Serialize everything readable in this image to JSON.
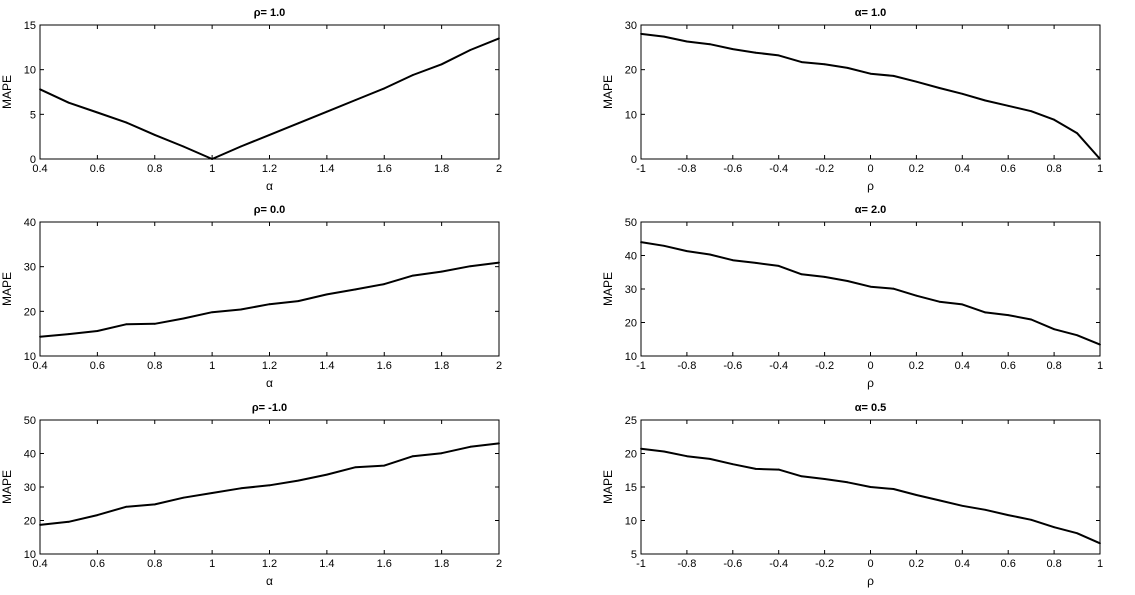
{
  "chart_data": [
    {
      "type": "line",
      "title": "ρ= 1.0",
      "xlabel": "α",
      "ylabel": "MAPE",
      "xlim": [
        0.4,
        2
      ],
      "ylim": [
        0,
        15
      ],
      "xticks": [
        "0.4",
        "0.6",
        "0.8",
        "1",
        "1.2",
        "1.4",
        "1.6",
        "1.8",
        "2"
      ],
      "yticks": [
        "0",
        "5",
        "10",
        "15"
      ],
      "grid": false,
      "x": [
        0.4,
        0.5,
        0.6,
        0.7,
        0.8,
        0.9,
        1.0,
        1.1,
        1.2,
        1.3,
        1.4,
        1.5,
        1.6,
        1.7,
        1.8,
        1.9,
        2.0
      ],
      "values": [
        7.8,
        6.3,
        5.2,
        4.1,
        2.7,
        1.4,
        0.0,
        1.4,
        2.7,
        4.0,
        5.3,
        6.6,
        7.9,
        9.4,
        10.6,
        12.2,
        13.5
      ]
    },
    {
      "type": "line",
      "title": "α= 1.0",
      "xlabel": "ρ",
      "ylabel": "MAPE",
      "xlim": [
        -1,
        1
      ],
      "ylim": [
        0,
        30
      ],
      "xticks": [
        "-1",
        "-0.8",
        "-0.6",
        "-0.4",
        "-0.2",
        "0",
        "0.2",
        "0.4",
        "0.6",
        "0.8",
        "1"
      ],
      "yticks": [
        "0",
        "10",
        "20",
        "30"
      ],
      "grid": false,
      "x": [
        -1.0,
        -0.9,
        -0.8,
        -0.7,
        -0.6,
        -0.5,
        -0.4,
        -0.3,
        -0.2,
        -0.1,
        0.0,
        0.1,
        0.2,
        0.3,
        0.4,
        0.5,
        0.6,
        0.7,
        0.8,
        0.9,
        1.0
      ],
      "values": [
        28.0,
        27.4,
        26.3,
        25.7,
        24.6,
        23.8,
        23.2,
        21.7,
        21.2,
        20.4,
        19.1,
        18.6,
        17.3,
        15.9,
        14.6,
        13.1,
        11.9,
        10.7,
        8.8,
        5.8,
        0.0
      ]
    },
    {
      "type": "line",
      "title": "ρ= 0.0",
      "xlabel": "α",
      "ylabel": "MAPE",
      "xlim": [
        0.4,
        2
      ],
      "ylim": [
        10,
        40
      ],
      "xticks": [
        "0.4",
        "0.6",
        "0.8",
        "1",
        "1.2",
        "1.4",
        "1.6",
        "1.8",
        "2"
      ],
      "yticks": [
        "10",
        "20",
        "30",
        "40"
      ],
      "grid": false,
      "x": [
        0.4,
        0.5,
        0.6,
        0.7,
        0.8,
        0.9,
        1.0,
        1.1,
        1.2,
        1.3,
        1.4,
        1.5,
        1.6,
        1.7,
        1.8,
        1.9,
        2.0
      ],
      "values": [
        14.3,
        14.9,
        15.6,
        17.1,
        17.2,
        18.4,
        19.8,
        20.4,
        21.6,
        22.3,
        23.8,
        24.9,
        26.1,
        28.0,
        28.9,
        30.1,
        30.9
      ]
    },
    {
      "type": "line",
      "title": "α= 2.0",
      "xlabel": "ρ",
      "ylabel": "MAPE",
      "xlim": [
        -1,
        1
      ],
      "ylim": [
        10,
        50
      ],
      "xticks": [
        "-1",
        "-0.8",
        "-0.6",
        "-0.4",
        "-0.2",
        "0",
        "0.2",
        "0.4",
        "0.6",
        "0.8",
        "1"
      ],
      "yticks": [
        "10",
        "20",
        "30",
        "40",
        "50"
      ],
      "grid": false,
      "x": [
        -1.0,
        -0.9,
        -0.8,
        -0.7,
        -0.6,
        -0.5,
        -0.4,
        -0.3,
        -0.2,
        -0.1,
        0.0,
        0.1,
        0.2,
        0.3,
        0.4,
        0.5,
        0.6,
        0.7,
        0.8,
        0.9,
        1.0
      ],
      "values": [
        44.0,
        42.9,
        41.3,
        40.3,
        38.6,
        37.8,
        36.9,
        34.4,
        33.6,
        32.4,
        30.7,
        30.1,
        28.0,
        26.2,
        25.4,
        23.0,
        22.2,
        20.9,
        18.0,
        16.2,
        13.4
      ]
    },
    {
      "type": "line",
      "title": "ρ= -1.0",
      "xlabel": "α",
      "ylabel": "MAPE",
      "xlim": [
        0.4,
        2
      ],
      "ylim": [
        10,
        50
      ],
      "xticks": [
        "0.4",
        "0.6",
        "0.8",
        "1",
        "1.2",
        "1.4",
        "1.6",
        "1.8",
        "2"
      ],
      "yticks": [
        "10",
        "20",
        "30",
        "40",
        "50"
      ],
      "grid": false,
      "x": [
        0.4,
        0.5,
        0.6,
        0.7,
        0.8,
        0.9,
        1.0,
        1.1,
        1.2,
        1.3,
        1.4,
        1.5,
        1.6,
        1.7,
        1.8,
        1.9,
        2.0
      ],
      "values": [
        18.7,
        19.6,
        21.6,
        24.1,
        24.8,
        26.8,
        28.2,
        29.6,
        30.5,
        31.9,
        33.7,
        35.9,
        36.4,
        39.2,
        40.1,
        42.0,
        43.0
      ]
    },
    {
      "type": "line",
      "title": "α= 0.5",
      "xlabel": "ρ",
      "ylabel": "MAPE",
      "xlim": [
        -1,
        1
      ],
      "ylim": [
        5,
        25
      ],
      "xticks": [
        "-1",
        "-0.8",
        "-0.6",
        "-0.4",
        "-0.2",
        "0",
        "0.2",
        "0.4",
        "0.6",
        "0.8",
        "1"
      ],
      "yticks": [
        "5",
        "10",
        "15",
        "20",
        "25"
      ],
      "grid": false,
      "x": [
        -1.0,
        -0.9,
        -0.8,
        -0.7,
        -0.6,
        -0.5,
        -0.4,
        -0.3,
        -0.2,
        -0.1,
        0.0,
        0.1,
        0.2,
        0.3,
        0.4,
        0.5,
        0.6,
        0.7,
        0.8,
        0.9,
        1.0
      ],
      "values": [
        20.7,
        20.3,
        19.6,
        19.2,
        18.4,
        17.7,
        17.6,
        16.6,
        16.2,
        15.7,
        15.0,
        14.7,
        13.8,
        13.0,
        12.2,
        11.6,
        10.8,
        10.1,
        9.0,
        8.1,
        6.6
      ]
    }
  ]
}
